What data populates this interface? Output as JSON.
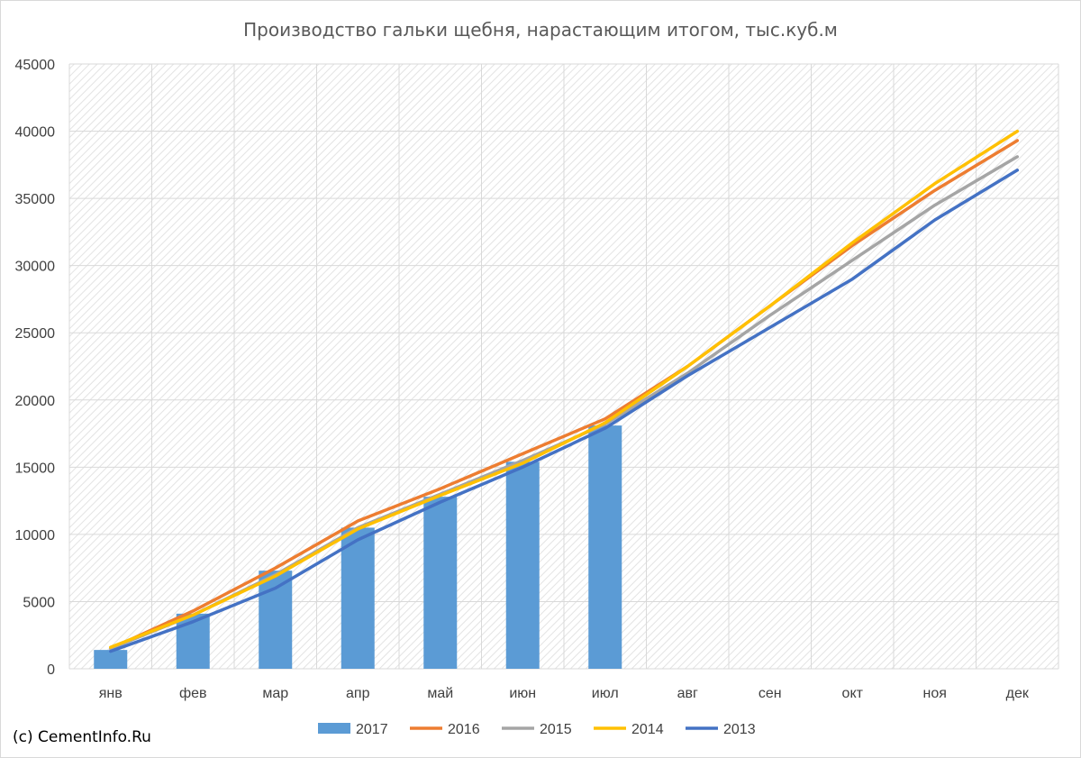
{
  "credit": "(c) CementInfo.Ru",
  "chart_data": {
    "type": "bar",
    "title": "Производство гальки  щебня, нарастающим итогом, тыс.куб.м",
    "xlabel": "",
    "ylabel": "",
    "ylim": [
      0,
      45000
    ],
    "yticks": [
      "0",
      "5000",
      "10000",
      "15000",
      "20000",
      "25000",
      "30000",
      "35000",
      "40000",
      "45000"
    ],
    "categories": [
      "янв",
      "фев",
      "мар",
      "апр",
      "май",
      "июн",
      "июл",
      "авг",
      "сен",
      "окт",
      "ноя",
      "дек"
    ],
    "grid": true,
    "legend": "bottom",
    "series": [
      {
        "name": "2017",
        "type": "bar",
        "color": "#5b9bd5",
        "values": [
          1400,
          4100,
          7300,
          10500,
          12800,
          15400,
          18100,
          null,
          null,
          null,
          null,
          null
        ]
      },
      {
        "name": "2016",
        "type": "line",
        "color": "#ed7d31",
        "values": [
          1500,
          4300,
          7500,
          11000,
          13400,
          16000,
          18600,
          22500,
          27000,
          31500,
          35600,
          39300
        ]
      },
      {
        "name": "2015",
        "type": "line",
        "color": "#a5a5a5",
        "values": [
          1500,
          4000,
          7000,
          10500,
          13000,
          15500,
          18200,
          22000,
          26300,
          30400,
          34500,
          38100
        ]
      },
      {
        "name": "2014",
        "type": "line",
        "color": "#ffc000",
        "values": [
          1600,
          4000,
          6900,
          10400,
          12900,
          15300,
          18300,
          22500,
          27000,
          31700,
          36100,
          40000
        ]
      },
      {
        "name": "2013",
        "type": "line",
        "color": "#4472c4",
        "values": [
          1300,
          3500,
          6000,
          9600,
          12400,
          15000,
          17900,
          21800,
          25400,
          29000,
          33400,
          37100
        ]
      }
    ]
  }
}
